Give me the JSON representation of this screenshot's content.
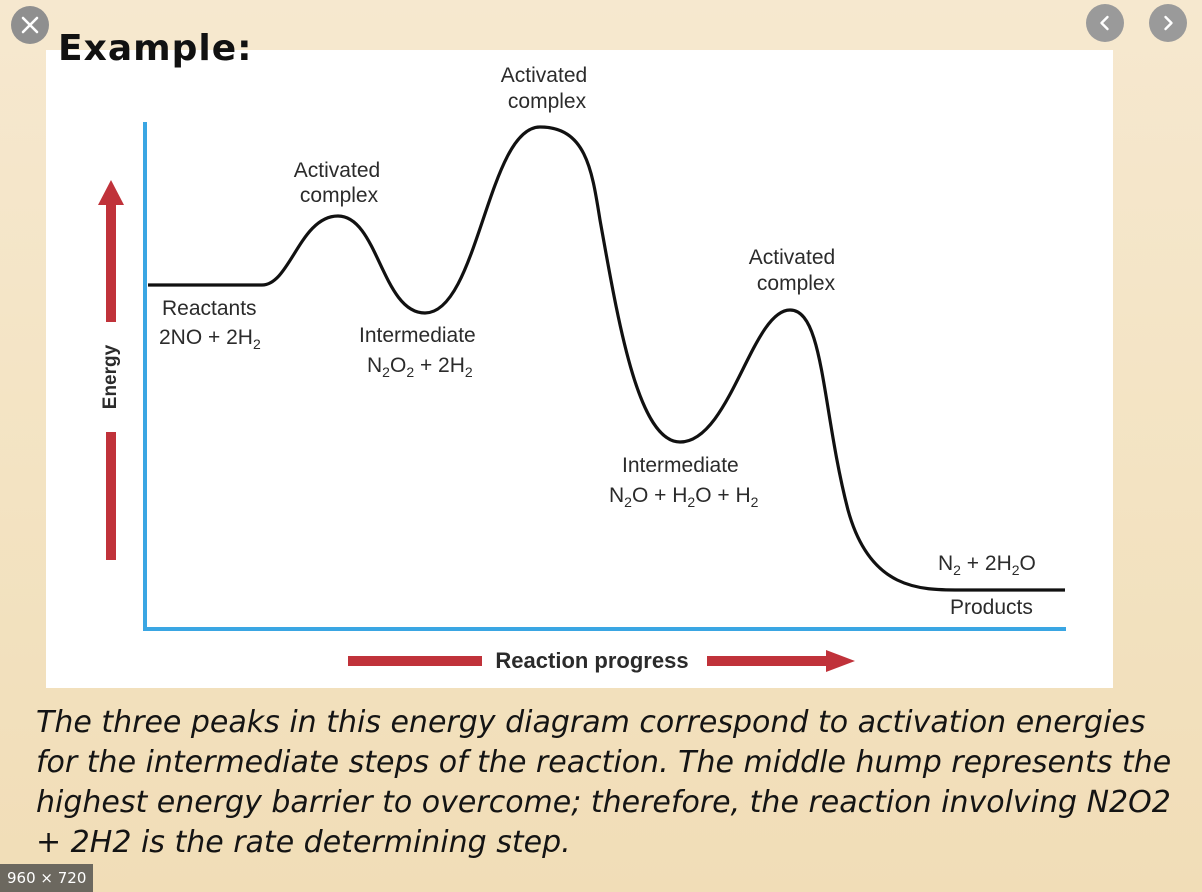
{
  "viewer": {
    "close_icon": "close-icon",
    "prev_icon": "chevron-left-icon",
    "next_icon": "chevron-right-icon",
    "image_size": "960 × 720"
  },
  "slide": {
    "title": "Example:",
    "caption": "The three peaks in this energy diagram correspond to activation energies for the intermediate steps of the reaction. The middle hump represents the highest energy barrier to overcome; therefore, the reaction involving N2O2 + 2H2 is the rate determining step."
  },
  "diagram": {
    "y_axis_label": "Energy",
    "x_axis_label": "Reaction progress",
    "colors": {
      "axis": "#3aa6e3",
      "arrow": "#c0323a",
      "curve": "#111111",
      "text": "#2b2b2b"
    },
    "labels": {
      "peak1_line1": "Activated",
      "peak1_line2": "complex",
      "peak2_line1": "Activated",
      "peak2_line2": "complex",
      "peak3_line1": "Activated",
      "peak3_line2": "complex",
      "reactants_name": "Reactants",
      "intermediate1_name": "Intermediate",
      "intermediate2_name": "Intermediate",
      "products_name": "Products"
    },
    "formulas": {
      "reactants": [
        {
          "t": "2NO + 2H",
          "sub": false
        },
        {
          "t": "2",
          "sub": true
        }
      ],
      "intermediate1": [
        {
          "t": "N",
          "sub": false
        },
        {
          "t": "2",
          "sub": true
        },
        {
          "t": "O",
          "sub": false
        },
        {
          "t": "2",
          "sub": true
        },
        {
          "t": " + 2H",
          "sub": false
        },
        {
          "t": "2",
          "sub": true
        }
      ],
      "intermediate2": [
        {
          "t": "N",
          "sub": false
        },
        {
          "t": "2",
          "sub": true
        },
        {
          "t": "O + H",
          "sub": false
        },
        {
          "t": "2",
          "sub": true
        },
        {
          "t": "O + H",
          "sub": false
        },
        {
          "t": "2",
          "sub": true
        }
      ],
      "products": [
        {
          "t": "N",
          "sub": false
        },
        {
          "t": "2",
          "sub": true
        },
        {
          "t": " + 2H",
          "sub": false
        },
        {
          "t": "2",
          "sub": true
        },
        {
          "t": "O",
          "sub": false
        }
      ]
    }
  }
}
